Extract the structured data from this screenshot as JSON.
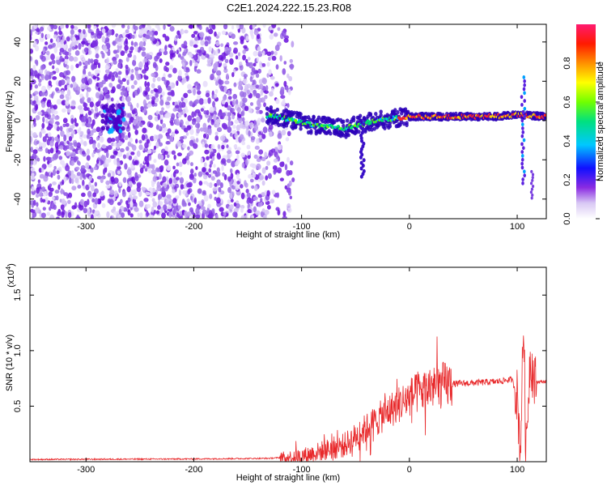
{
  "title": "C2E1.2024.222.15.23.R08",
  "spectrogram": {
    "xlabel": "Height of straight line (km)",
    "ylabel": "Frequency (Hz)",
    "xlim": [
      -352,
      127
    ],
    "ylim": [
      -50,
      49
    ],
    "xticks": [
      -300,
      -200,
      -100,
      0,
      100
    ],
    "yticks": [
      -40,
      -20,
      0,
      20,
      40
    ],
    "colorbar": {
      "label": "Normalized spectral amplitude",
      "range": [
        0,
        1
      ],
      "ticks": [
        "0.0",
        "0.2",
        "0.4",
        "0.6",
        "0.8"
      ],
      "tick_values": [
        0.0,
        0.2,
        0.4,
        0.6,
        0.8
      ],
      "colormap": [
        "#ffffff",
        "#c9b8f0",
        "#8a2be2",
        "#5a00d0",
        "#2020ff",
        "#00c8ff",
        "#00e070",
        "#7cff00",
        "#ffff00",
        "#ff9000",
        "#ff2000",
        "#ff1060"
      ]
    },
    "ridge": [
      {
        "x": -130,
        "y": 3
      },
      {
        "x": -115,
        "y": 1
      },
      {
        "x": -100,
        "y": -1
      },
      {
        "x": -80,
        "y": -3
      },
      {
        "x": -60,
        "y": -4
      },
      {
        "x": -45,
        "y": -2
      },
      {
        "x": -30,
        "y": 0
      },
      {
        "x": -15,
        "y": 1
      },
      {
        "x": 0,
        "y": 2
      },
      {
        "x": 40,
        "y": 2
      },
      {
        "x": 80,
        "y": 2
      },
      {
        "x": 100,
        "y": 3
      },
      {
        "x": 127,
        "y": 2
      }
    ]
  },
  "snr": {
    "xlabel": "Height of straight line (km)",
    "ylabel": "SNR (10 * v/v)",
    "multiplier": "(x10",
    "multiplier_exp": "4",
    "multiplier_close": ")",
    "xlim": [
      -352,
      127
    ],
    "ylim": [
      0,
      1.75
    ],
    "xticks": [
      -300,
      -200,
      -100,
      0,
      100
    ],
    "yticks": [
      0.5,
      1.0,
      1.5
    ],
    "ytick_labels": [
      "0.5",
      "1.0",
      "1.5"
    ],
    "line_color": "#e8282a",
    "series_outline": [
      {
        "x": -352,
        "y": 0.02
      },
      {
        "x": -200,
        "y": 0.025
      },
      {
        "x": -130,
        "y": 0.03
      },
      {
        "x": -100,
        "y": 0.05
      },
      {
        "x": -80,
        "y": 0.1
      },
      {
        "x": -60,
        "y": 0.15
      },
      {
        "x": -40,
        "y": 0.3
      },
      {
        "x": -20,
        "y": 0.45
      },
      {
        "x": 0,
        "y": 0.58
      },
      {
        "x": 20,
        "y": 0.67
      },
      {
        "x": 40,
        "y": 0.7
      },
      {
        "x": 60,
        "y": 0.71
      },
      {
        "x": 80,
        "y": 0.72
      },
      {
        "x": 95,
        "y": 0.74
      },
      {
        "x": 100,
        "y": 0.6
      },
      {
        "x": 103,
        "y": 0.1
      },
      {
        "x": 106,
        "y": 1.3
      },
      {
        "x": 108,
        "y": 0.05
      },
      {
        "x": 112,
        "y": 0.95
      },
      {
        "x": 116,
        "y": 0.72
      },
      {
        "x": 127,
        "y": 0.72
      }
    ]
  }
}
